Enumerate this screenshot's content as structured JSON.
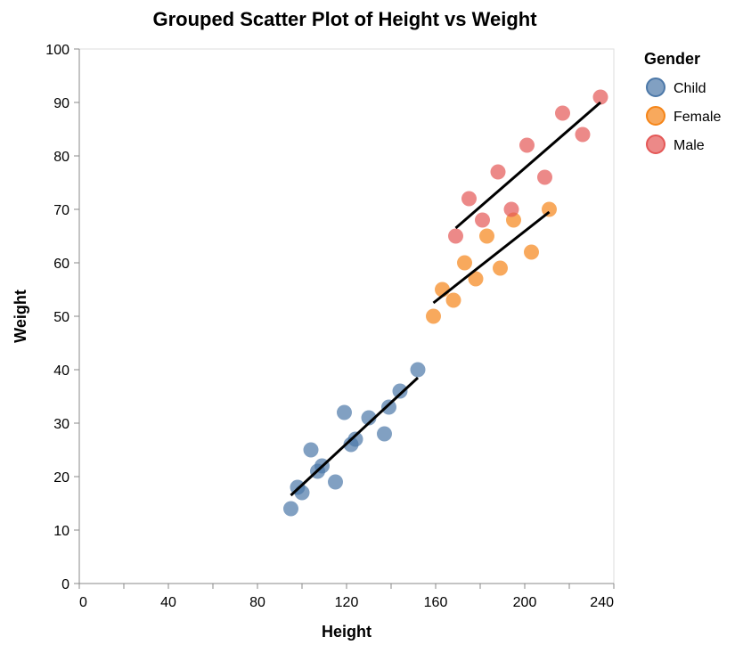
{
  "chart_data": {
    "type": "scatter",
    "title": "Grouped Scatter Plot of Height vs Weight",
    "xlabel": "Height",
    "ylabel": "Weight",
    "xlim": [
      0,
      240
    ],
    "ylim": [
      0,
      100
    ],
    "x_ticks": [
      0,
      40,
      80,
      120,
      160,
      200,
      240
    ],
    "y_ticks": [
      0,
      10,
      20,
      30,
      40,
      50,
      60,
      70,
      80,
      90,
      100
    ],
    "grid": false,
    "legend": {
      "title": "Gender",
      "placement": "right"
    },
    "series": [
      {
        "name": "Child",
        "color": "#4c78a8",
        "points": [
          {
            "x": 95,
            "y": 14
          },
          {
            "x": 98,
            "y": 18
          },
          {
            "x": 100,
            "y": 17
          },
          {
            "x": 104,
            "y": 25
          },
          {
            "x": 107,
            "y": 21
          },
          {
            "x": 109,
            "y": 22
          },
          {
            "x": 115,
            "y": 19
          },
          {
            "x": 119,
            "y": 32
          },
          {
            "x": 122,
            "y": 26
          },
          {
            "x": 124,
            "y": 27
          },
          {
            "x": 130,
            "y": 31
          },
          {
            "x": 137,
            "y": 28
          },
          {
            "x": 139,
            "y": 33
          },
          {
            "x": 144,
            "y": 36
          },
          {
            "x": 152,
            "y": 40
          }
        ],
        "trend": {
          "x1": 95,
          "y1": 16.5,
          "x2": 152,
          "y2": 38.5
        }
      },
      {
        "name": "Female",
        "color": "#f58518",
        "points": [
          {
            "x": 159,
            "y": 50
          },
          {
            "x": 163,
            "y": 55
          },
          {
            "x": 168,
            "y": 53
          },
          {
            "x": 173,
            "y": 60
          },
          {
            "x": 178,
            "y": 57
          },
          {
            "x": 183,
            "y": 65
          },
          {
            "x": 189,
            "y": 59
          },
          {
            "x": 195,
            "y": 68
          },
          {
            "x": 203,
            "y": 62
          },
          {
            "x": 211,
            "y": 70
          }
        ],
        "trend": {
          "x1": 159,
          "y1": 52.5,
          "x2": 211,
          "y2": 69.5
        }
      },
      {
        "name": "Male",
        "color": "#e45756",
        "points": [
          {
            "x": 169,
            "y": 65
          },
          {
            "x": 175,
            "y": 72
          },
          {
            "x": 181,
            "y": 68
          },
          {
            "x": 188,
            "y": 77
          },
          {
            "x": 194,
            "y": 70
          },
          {
            "x": 201,
            "y": 82
          },
          {
            "x": 209,
            "y": 76
          },
          {
            "x": 217,
            "y": 88
          },
          {
            "x": 226,
            "y": 84
          },
          {
            "x": 234,
            "y": 91
          }
        ],
        "trend": {
          "x1": 169,
          "y1": 66.5,
          "x2": 234,
          "y2": 90.0
        }
      }
    ]
  }
}
